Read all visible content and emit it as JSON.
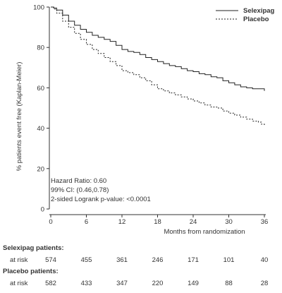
{
  "chart_data": {
    "type": "line",
    "xlabel": "Months from randomization",
    "ylabel": "% patients event free (Kaplan-Meier)",
    "xlim": [
      0,
      36
    ],
    "ylim": [
      0,
      100
    ],
    "xticks": [
      "0",
      "6",
      "12",
      "18",
      "24",
      "30",
      "36"
    ],
    "yticks": [
      "0",
      "20",
      "40",
      "60",
      "80",
      "100"
    ],
    "legend_position": "top-right",
    "series": [
      {
        "name": "Selexipag",
        "style": "solid",
        "color": "#222222",
        "x": [
          0,
          0.5,
          1,
          2,
          3,
          4,
          5,
          6,
          7,
          8,
          9,
          10,
          11,
          12,
          13,
          14,
          15,
          16,
          17,
          18,
          19,
          20,
          21,
          22,
          23,
          24,
          25,
          26,
          27,
          28,
          29,
          30,
          31,
          32,
          33,
          34,
          35,
          36
        ],
        "y": [
          100,
          99.5,
          98.5,
          96,
          93,
          91,
          89,
          87.5,
          86,
          85,
          84,
          83,
          81,
          79,
          78,
          77.5,
          76.5,
          75,
          74,
          73,
          72,
          71,
          70.5,
          69.5,
          68.5,
          68,
          67,
          66.5,
          65.5,
          65,
          63.5,
          62.5,
          61.5,
          60.5,
          60,
          59.5,
          59.5,
          58.5
        ]
      },
      {
        "name": "Placebo",
        "style": "dashed",
        "color": "#222222",
        "x": [
          0,
          0.5,
          1,
          2,
          3,
          4,
          5,
          6,
          7,
          8,
          9,
          10,
          11,
          12,
          13,
          14,
          15,
          16,
          17,
          18,
          19,
          20,
          21,
          22,
          23,
          24,
          25,
          26,
          27,
          28,
          29,
          30,
          31,
          32,
          33,
          34,
          35,
          35.5,
          36
        ],
        "y": [
          100,
          99,
          97,
          93,
          90,
          87,
          84,
          81.5,
          79,
          77,
          75,
          73,
          71,
          68.5,
          67.5,
          66.5,
          65,
          63.5,
          61.5,
          59.5,
          58.5,
          57.5,
          56.5,
          55.5,
          54.5,
          53.5,
          52.5,
          51.5,
          50.5,
          50,
          48.5,
          47.5,
          46.5,
          45.5,
          44.5,
          43.5,
          43,
          42,
          41
        ]
      }
    ],
    "annotations": [
      "Hazard Ratio: 0.60",
      "99% CI: (0.46,0.78)",
      "2-sided Logrank p-value: <0.0001"
    ]
  },
  "risk_table": {
    "groups": [
      {
        "title": "Selexipag patients:",
        "row_label": "at risk",
        "values": [
          "574",
          "455",
          "361",
          "246",
          "171",
          "101",
          "40"
        ]
      },
      {
        "title": "Placebo patients:",
        "row_label": "at risk",
        "values": [
          "582",
          "433",
          "347",
          "220",
          "149",
          "88",
          "28"
        ]
      }
    ]
  }
}
